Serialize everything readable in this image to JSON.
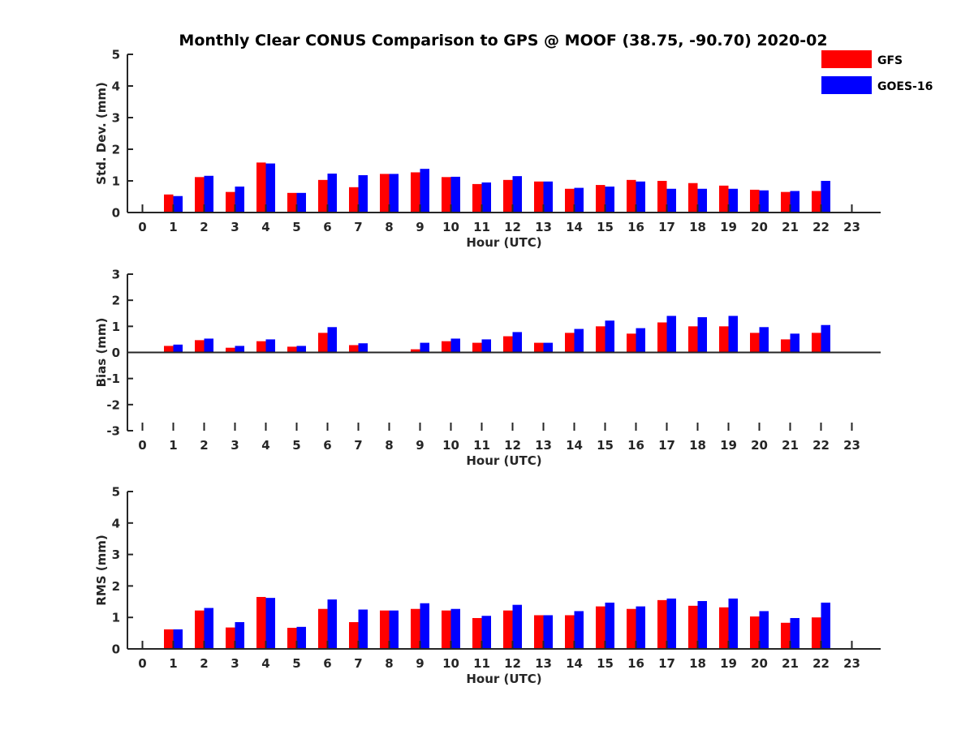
{
  "title": "Monthly Clear CONUS Comparison to GPS @ MOOF (38.75, -90.70) 2020-02",
  "legend": {
    "placement": "top-right",
    "entries": [
      {
        "name": "GFS",
        "color": "#ff0000"
      },
      {
        "name": "GOES-16",
        "color": "#0000ff"
      }
    ]
  },
  "chart_data": [
    {
      "type": "bar",
      "xlabel": "Hour (UTC)",
      "ylabel": "Std. Dev. (mm)",
      "ylim": [
        0,
        5
      ],
      "yticks": [
        0,
        1,
        2,
        3,
        4,
        5
      ],
      "x": [
        0,
        1,
        2,
        3,
        4,
        5,
        6,
        7,
        8,
        9,
        10,
        11,
        12,
        13,
        14,
        15,
        16,
        17,
        18,
        19,
        20,
        21,
        22,
        23
      ],
      "series": [
        {
          "name": "GFS",
          "color": "#ff0000",
          "values": [
            null,
            0.57,
            1.12,
            0.65,
            1.58,
            0.62,
            1.03,
            0.8,
            1.22,
            1.27,
            1.12,
            0.9,
            1.03,
            0.98,
            0.75,
            0.87,
            1.03,
            1.0,
            0.93,
            0.85,
            0.72,
            0.65,
            0.68,
            null
          ]
        },
        {
          "name": "GOES-16",
          "color": "#0000ff",
          "values": [
            null,
            0.52,
            1.16,
            0.82,
            1.55,
            0.62,
            1.23,
            1.18,
            1.22,
            1.38,
            1.13,
            0.95,
            1.15,
            0.98,
            0.78,
            0.82,
            0.98,
            0.75,
            0.75,
            0.75,
            0.7,
            0.68,
            1.0,
            null
          ]
        }
      ]
    },
    {
      "type": "bar",
      "xlabel": "Hour (UTC)",
      "ylabel": "Bias (mm)",
      "ylim": [
        -3,
        3
      ],
      "yticks": [
        -3,
        -2,
        -1,
        0,
        1,
        2,
        3
      ],
      "x": [
        0,
        1,
        2,
        3,
        4,
        5,
        6,
        7,
        8,
        9,
        10,
        11,
        12,
        13,
        14,
        15,
        16,
        17,
        18,
        19,
        20,
        21,
        22,
        23
      ],
      "series": [
        {
          "name": "GFS",
          "color": "#ff0000",
          "values": [
            null,
            0.25,
            0.47,
            0.18,
            0.43,
            0.22,
            0.75,
            0.28,
            null,
            0.12,
            0.43,
            0.37,
            0.62,
            0.37,
            0.75,
            1.0,
            0.72,
            1.15,
            1.0,
            1.0,
            0.75,
            0.5,
            0.75,
            null
          ]
        },
        {
          "name": "GOES-16",
          "color": "#0000ff",
          "values": [
            null,
            0.3,
            0.53,
            0.25,
            0.5,
            0.25,
            0.97,
            0.35,
            null,
            0.37,
            0.53,
            0.5,
            0.78,
            0.37,
            0.9,
            1.22,
            0.93,
            1.4,
            1.35,
            1.4,
            0.97,
            0.72,
            1.05,
            null
          ]
        }
      ]
    },
    {
      "type": "bar",
      "xlabel": "Hour (UTC)",
      "ylabel": "RMS (mm)",
      "ylim": [
        0,
        5
      ],
      "yticks": [
        0,
        1,
        2,
        3,
        4,
        5
      ],
      "x": [
        0,
        1,
        2,
        3,
        4,
        5,
        6,
        7,
        8,
        9,
        10,
        11,
        12,
        13,
        14,
        15,
        16,
        17,
        18,
        19,
        20,
        21,
        22,
        23
      ],
      "series": [
        {
          "name": "GFS",
          "color": "#ff0000",
          "values": [
            null,
            0.62,
            1.22,
            0.68,
            1.65,
            0.67,
            1.27,
            0.85,
            1.22,
            1.27,
            1.22,
            0.98,
            1.22,
            1.07,
            1.07,
            1.35,
            1.27,
            1.55,
            1.37,
            1.32,
            1.03,
            0.83,
            1.0,
            null
          ]
        },
        {
          "name": "GOES-16",
          "color": "#0000ff",
          "values": [
            null,
            0.62,
            1.3,
            0.85,
            1.62,
            0.7,
            1.57,
            1.25,
            1.22,
            1.45,
            1.27,
            1.05,
            1.4,
            1.07,
            1.2,
            1.47,
            1.35,
            1.6,
            1.52,
            1.6,
            1.2,
            0.98,
            1.47,
            null
          ]
        }
      ]
    }
  ]
}
